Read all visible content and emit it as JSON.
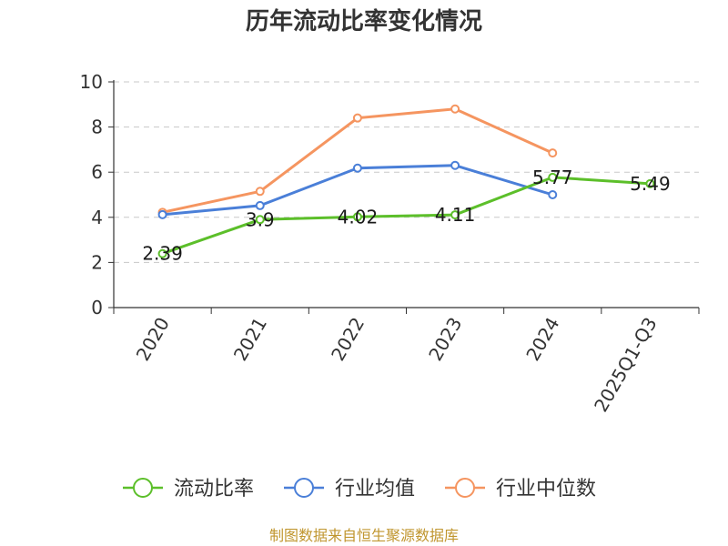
{
  "chart_data": {
    "type": "line",
    "title": "历年流动比率变化情况",
    "categories": [
      "2020",
      "2021",
      "2022",
      "2023",
      "2024",
      "2025Q1-Q3"
    ],
    "ylim": [
      0,
      10
    ],
    "yticks": [
      "0",
      "2",
      "4",
      "6",
      "8",
      "10"
    ],
    "grid": true,
    "legend_position": "bottom",
    "series": [
      {
        "name": "流动比率",
        "color": "#5cbf2a",
        "values": [
          2.39,
          3.9,
          4.02,
          4.11,
          5.77,
          5.49
        ],
        "labels": [
          "2.39",
          "3.9",
          "4.02",
          "4.11",
          "5.77",
          "5.49"
        ]
      },
      {
        "name": "行业均值",
        "color": "#4a7fd8",
        "values": [
          4.12,
          4.52,
          6.18,
          6.3,
          5.0,
          null
        ],
        "labels": []
      },
      {
        "name": "行业中位数",
        "color": "#f59560",
        "values": [
          4.22,
          5.15,
          8.4,
          8.8,
          6.85,
          null
        ],
        "labels": []
      }
    ],
    "source": "制图数据来自恒生聚源数据库"
  }
}
